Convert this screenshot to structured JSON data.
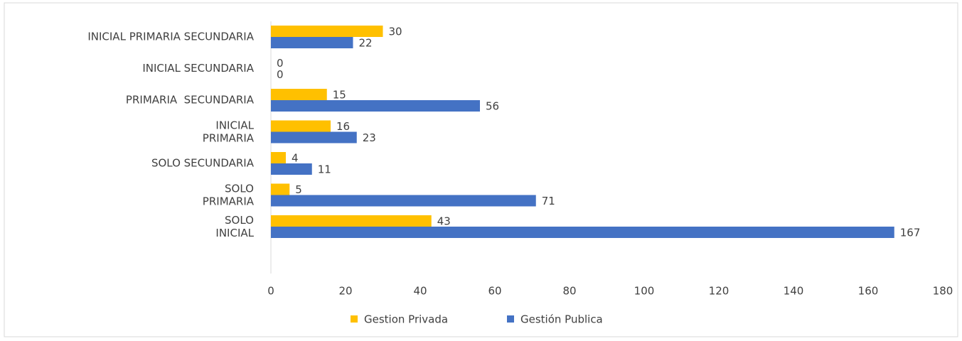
{
  "chart_data": {
    "type": "bar",
    "orientation": "horizontal",
    "categories": [
      "INICIAL PRIMARIA SECUNDARIA",
      "INICIAL SECUNDARIA",
      "PRIMARIA  SECUNDARIA",
      "INICIAL\nPRIMARIA",
      "SOLO SECUNDARIA",
      "SOLO\nPRIMARIA",
      "SOLO\nINICIAL"
    ],
    "series": [
      {
        "name": "Gestion Privada",
        "color": "#ffc000",
        "values": [
          30,
          0,
          15,
          16,
          4,
          5,
          43
        ]
      },
      {
        "name": "Gestión Publica",
        "color": "#4472c4",
        "values": [
          22,
          0,
          56,
          23,
          11,
          71,
          167
        ]
      }
    ],
    "xlim": [
      0,
      180
    ],
    "xticks": [
      0,
      20,
      40,
      60,
      80,
      100,
      120,
      140,
      160,
      180
    ],
    "grid": false,
    "legend": "bottom"
  }
}
